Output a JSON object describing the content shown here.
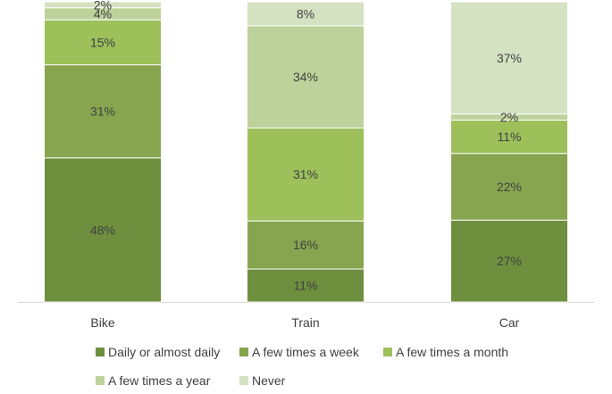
{
  "chart_data": {
    "type": "bar",
    "stacked": true,
    "orientation": "vertical",
    "normalized": "percent",
    "categories": [
      "Bike",
      "Train",
      "Car"
    ],
    "series": [
      {
        "name": "Daily or almost daily",
        "color": "#6e8f3e",
        "values": [
          48,
          11,
          27
        ],
        "labels": [
          "48%",
          "11%",
          "27%"
        ]
      },
      {
        "name": "A few times a week",
        "color": "#87a54f",
        "values": [
          31,
          16,
          22
        ],
        "labels": [
          "31%",
          "16%",
          "22%"
        ]
      },
      {
        "name": "A few times a month",
        "color": "#9dc05b",
        "values": [
          15,
          31,
          11
        ],
        "labels": [
          "15%",
          "31%",
          "11%"
        ]
      },
      {
        "name": "A few times a year",
        "color": "#bdd29a",
        "values": [
          4,
          34,
          2
        ],
        "labels": [
          "4%",
          "34%",
          "2%"
        ]
      },
      {
        "name": "Never",
        "color": "#d5e2c2",
        "values": [
          2,
          8,
          37
        ],
        "labels": [
          "2%",
          "8%",
          "37%"
        ]
      }
    ],
    "ylim": [
      0,
      100
    ],
    "grid": false,
    "legend_position": "bottom"
  }
}
